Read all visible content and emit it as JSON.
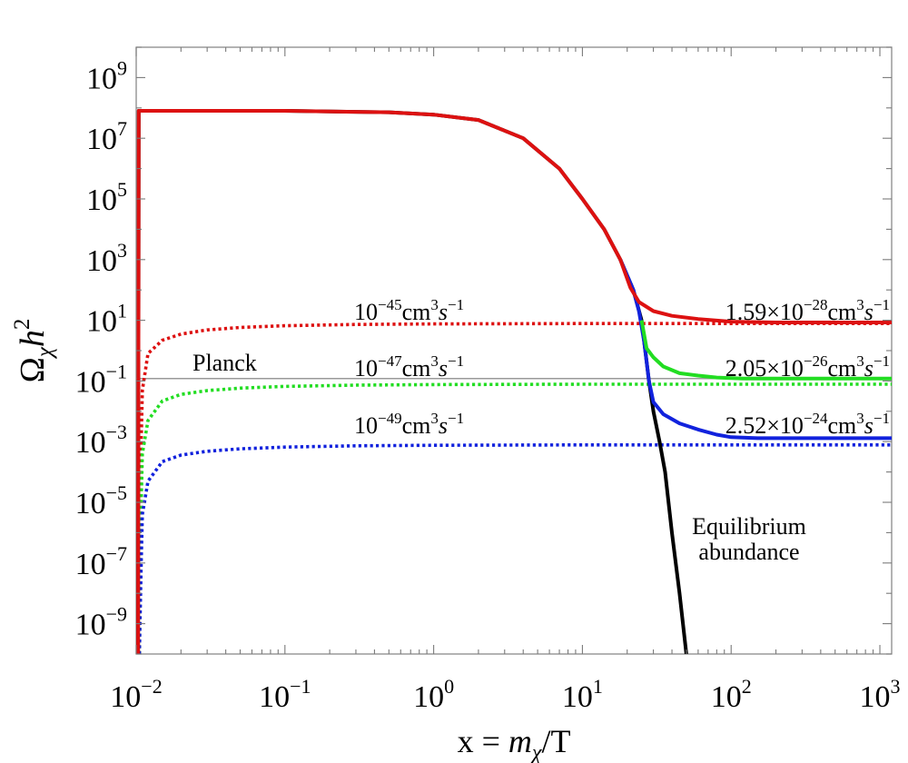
{
  "chart_data": {
    "type": "line",
    "x_scale": "log",
    "y_scale": "log",
    "xlim": [
      0.01,
      1200
    ],
    "ylim": [
      1e-10,
      10000000000.0
    ],
    "grid": false,
    "xlabel": {
      "pre": "x = ",
      "var": "m",
      "sub": "χ",
      "post": "/T"
    },
    "ylabel": {
      "base": "Ω",
      "sub": "χ",
      "h": "h",
      "exp": "2"
    },
    "x_ticks": [
      {
        "base": "10",
        "exp": "−2",
        "value": 0.01
      },
      {
        "base": "10",
        "exp": "−1",
        "value": 0.1
      },
      {
        "base": "10",
        "exp": "0",
        "value": 1
      },
      {
        "base": "10",
        "exp": "1",
        "value": 10
      },
      {
        "base": "10",
        "exp": "2",
        "value": 100
      },
      {
        "base": "10",
        "exp": "3",
        "value": 1000
      }
    ],
    "y_ticks": [
      {
        "base": "10",
        "exp": "9",
        "value": 1000000000.0
      },
      {
        "base": "10",
        "exp": "7",
        "value": 10000000.0
      },
      {
        "base": "10",
        "exp": "5",
        "value": 100000.0
      },
      {
        "base": "10",
        "exp": "3",
        "value": 1000.0
      },
      {
        "base": "10",
        "exp": "1",
        "value": 10.0
      },
      {
        "base": "10",
        "exp": "−1",
        "value": 0.1
      },
      {
        "base": "10",
        "exp": "−3",
        "value": 0.001
      },
      {
        "base": "10",
        "exp": "−5",
        "value": 1e-05
      },
      {
        "base": "10",
        "exp": "−7",
        "value": 1e-07
      },
      {
        "base": "10",
        "exp": "−9",
        "value": 1e-09
      }
    ],
    "planck": {
      "y": 0.12,
      "label": "Planck"
    },
    "series": [
      {
        "color": "#dd1111",
        "dash": "dotted",
        "label": {
          "pre": "10",
          "exp": "−45",
          "unit": "cm",
          "uexp": "3",
          "s": "s",
          "sexp": "−1"
        },
        "points": [
          [
            0.0105,
            1e-10
          ],
          [
            0.0108,
            0.001
          ],
          [
            0.011,
            0.05
          ],
          [
            0.012,
            0.8
          ],
          [
            0.015,
            2.2
          ],
          [
            0.02,
            3.5
          ],
          [
            0.03,
            4.8
          ],
          [
            0.05,
            5.8
          ],
          [
            0.1,
            6.6
          ],
          [
            0.3,
            7.3
          ],
          [
            1,
            7.6
          ],
          [
            10,
            7.8
          ],
          [
            100,
            7.8
          ],
          [
            1200,
            7.8
          ]
        ]
      },
      {
        "color": "#22dd22",
        "dash": "dotted",
        "label": {
          "pre": "10",
          "exp": "−47",
          "unit": "cm",
          "uexp": "3",
          "s": "s",
          "sexp": "−1"
        },
        "points": [
          [
            0.0105,
            1e-10
          ],
          [
            0.0108,
            1e-05
          ],
          [
            0.011,
            0.0004
          ],
          [
            0.012,
            0.005
          ],
          [
            0.015,
            0.022
          ],
          [
            0.02,
            0.036
          ],
          [
            0.03,
            0.048
          ],
          [
            0.05,
            0.058
          ],
          [
            0.1,
            0.066
          ],
          [
            0.3,
            0.073
          ],
          [
            1,
            0.076
          ],
          [
            10,
            0.078
          ],
          [
            100,
            0.078
          ],
          [
            1200,
            0.078
          ]
        ]
      },
      {
        "color": "#1122dd",
        "dash": "dotted",
        "label": {
          "pre": "10",
          "exp": "−49",
          "unit": "cm",
          "uexp": "3",
          "s": "s",
          "sexp": "−1"
        },
        "points": [
          [
            0.0105,
            1e-10
          ],
          [
            0.0108,
            1e-07
          ],
          [
            0.011,
            4e-06
          ],
          [
            0.012,
            5e-05
          ],
          [
            0.015,
            0.00022
          ],
          [
            0.02,
            0.00036
          ],
          [
            0.03,
            0.00048
          ],
          [
            0.05,
            0.00058
          ],
          [
            0.1,
            0.00066
          ],
          [
            0.3,
            0.00073
          ],
          [
            1,
            0.00076
          ],
          [
            10,
            0.00078
          ],
          [
            100,
            0.00078
          ],
          [
            1200,
            0.00078
          ]
        ]
      },
      {
        "color": "#000000",
        "dash": "solid",
        "label": {
          "line1": "Equilibrium",
          "line2": "abundance"
        },
        "points": [
          [
            0.0103,
            1e-10
          ],
          [
            0.0104,
            80000000
          ],
          [
            0.02,
            80000000
          ],
          [
            0.1,
            80000000
          ],
          [
            0.5,
            72000000
          ],
          [
            1,
            60000000
          ],
          [
            2,
            40000000
          ],
          [
            4,
            10000000
          ],
          [
            7,
            1000000
          ],
          [
            10,
            100000
          ],
          [
            14,
            10000
          ],
          [
            18,
            1000
          ],
          [
            22,
            100
          ],
          [
            25,
            10
          ],
          [
            28,
            0.1
          ],
          [
            30,
            0.01
          ],
          [
            33,
            0.001
          ],
          [
            36,
            0.0001
          ],
          [
            40,
            1e-06
          ],
          [
            45,
            1e-08
          ],
          [
            50,
            1e-10
          ]
        ]
      },
      {
        "color": "#1122dd",
        "dash": "solid",
        "label": {
          "pre": "2.52×10",
          "exp": "−24",
          "unit": "cm",
          "uexp": "3",
          "s": "s",
          "sexp": "−1"
        },
        "points": [
          [
            18,
            1000
          ],
          [
            22,
            100
          ],
          [
            24,
            20
          ],
          [
            26,
            2
          ],
          [
            28,
            0.1
          ],
          [
            30,
            0.02
          ],
          [
            35,
            0.008
          ],
          [
            45,
            0.004
          ],
          [
            60,
            0.0025
          ],
          [
            80,
            0.0017
          ],
          [
            100,
            0.0014
          ],
          [
            150,
            0.0013
          ],
          [
            1200,
            0.0013
          ]
        ]
      },
      {
        "color": "#22dd22",
        "dash": "solid",
        "label": {
          "pre": "2.05×10",
          "exp": "−26",
          "unit": "cm",
          "uexp": "3",
          "s": "s",
          "sexp": "−1"
        },
        "points": [
          [
            25,
            10
          ],
          [
            27,
            1.2
          ],
          [
            30,
            0.6
          ],
          [
            35,
            0.3
          ],
          [
            45,
            0.18
          ],
          [
            60,
            0.15
          ],
          [
            80,
            0.13
          ],
          [
            120,
            0.12
          ],
          [
            1200,
            0.12
          ]
        ]
      },
      {
        "color": "#dd1111",
        "dash": "solid",
        "label": {
          "pre": "1.59×10",
          "exp": "−28",
          "unit": "cm",
          "uexp": "3",
          "s": "s",
          "sexp": "−1"
        },
        "points": [
          [
            0.0103,
            1e-10
          ],
          [
            0.0104,
            80000000
          ],
          [
            0.02,
            80000000
          ],
          [
            0.1,
            80000000
          ],
          [
            0.5,
            72000000
          ],
          [
            1,
            60000000
          ],
          [
            2,
            40000000
          ],
          [
            4,
            10000000
          ],
          [
            7,
            1000000
          ],
          [
            10,
            100000
          ],
          [
            14,
            10000
          ],
          [
            18,
            1000
          ],
          [
            21,
            120
          ],
          [
            24,
            40
          ],
          [
            30,
            20
          ],
          [
            40,
            14
          ],
          [
            60,
            11
          ],
          [
            100,
            9
          ],
          [
            200,
            8.5
          ],
          [
            1200,
            8.5
          ]
        ]
      }
    ]
  }
}
